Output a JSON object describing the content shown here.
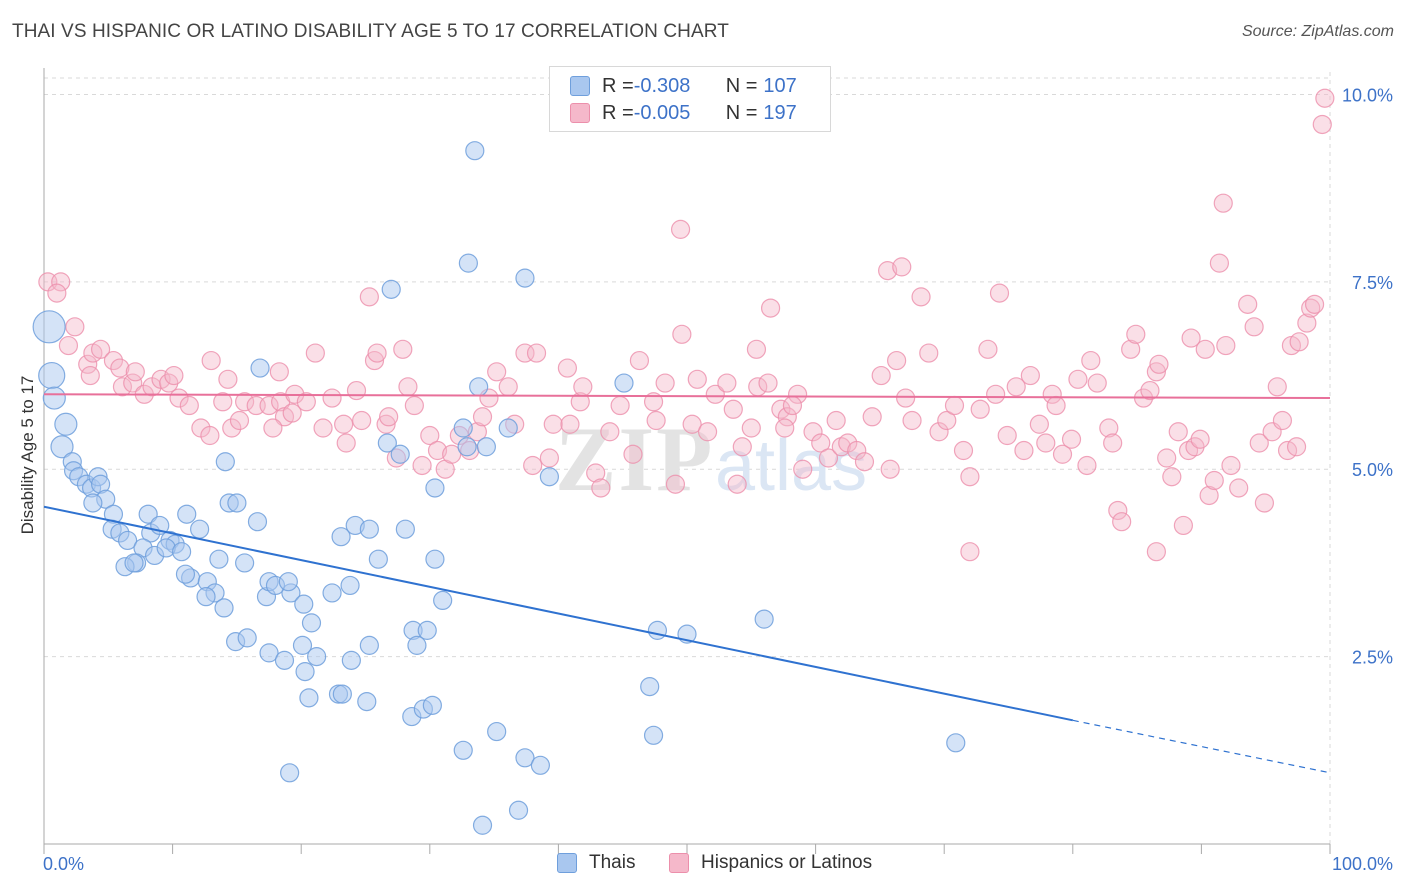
{
  "title": "THAI VS HISPANIC OR LATINO DISABILITY AGE 5 TO 17 CORRELATION CHART",
  "source": "Source: ZipAtlas.com",
  "legend": {
    "rows": [
      {
        "r_label": "R = ",
        "r_value": "-0.308",
        "n_label": "N = ",
        "n_value": "107"
      },
      {
        "r_label": "R = ",
        "r_value": "-0.005",
        "n_label": "N = ",
        "n_value": "197"
      }
    ]
  },
  "bottom_legend": [
    "Thais",
    "Hispanics or Latinos"
  ],
  "colors": {
    "thais_fill": "#a9c7ef",
    "thais_stroke": "#6f9fdc",
    "thais_line": "#2f72d0",
    "hisp_fill": "#f5b8ca",
    "hisp_stroke": "#ec8fab",
    "hisp_line": "#e8709a",
    "axis_text": "#3d72c8",
    "grid": "#d9d9d9"
  },
  "chart_data": {
    "type": "scatter",
    "title": "THAI VS HISPANIC OR LATINO DISABILITY AGE 5 TO 17 CORRELATION CHART",
    "xlabel": "",
    "ylabel": "Disability Age 5 to 17",
    "xlim": [
      0,
      100
    ],
    "ylim": [
      0,
      10.3
    ],
    "x_tick_labels": [
      "0.0%",
      "100.0%"
    ],
    "y_ticks": [
      2.5,
      5.0,
      7.5,
      10.0
    ],
    "y_tick_labels": [
      "2.5%",
      "5.0%",
      "7.5%",
      "10.0%"
    ],
    "grid": true,
    "legend_position": "top-center",
    "series": [
      {
        "name": "Thais",
        "trend": {
          "x": [
            0,
            80
          ],
          "y": [
            4.5,
            1.65
          ],
          "dashed_to": [
            100,
            0.95
          ]
        },
        "points": [
          [
            0.4,
            6.9
          ],
          [
            0.6,
            6.25
          ],
          [
            0.8,
            5.95
          ],
          [
            1.7,
            5.6
          ],
          [
            1.4,
            5.3
          ],
          [
            2.2,
            5.1
          ],
          [
            2.3,
            4.98
          ],
          [
            2.7,
            4.9
          ],
          [
            3.3,
            4.8
          ],
          [
            3.7,
            4.75
          ],
          [
            4.2,
            4.9
          ],
          [
            4.4,
            4.8
          ],
          [
            4.8,
            4.6
          ],
          [
            3.8,
            4.55
          ],
          [
            5.4,
            4.4
          ],
          [
            5.3,
            4.2
          ],
          [
            5.9,
            4.15
          ],
          [
            6.5,
            4.05
          ],
          [
            8.1,
            4.4
          ],
          [
            8.3,
            4.15
          ],
          [
            9.0,
            4.25
          ],
          [
            9.8,
            4.05
          ],
          [
            10.2,
            4.0
          ],
          [
            11.1,
            4.4
          ],
          [
            12.1,
            4.2
          ],
          [
            14.4,
            4.55
          ],
          [
            16.6,
            4.3
          ],
          [
            7.7,
            3.95
          ],
          [
            7.2,
            3.75
          ],
          [
            6.3,
            3.7
          ],
          [
            7.0,
            3.75
          ],
          [
            8.6,
            3.85
          ],
          [
            9.5,
            3.95
          ],
          [
            10.7,
            3.9
          ],
          [
            11.4,
            3.55
          ],
          [
            11.0,
            3.6
          ],
          [
            13.6,
            3.8
          ],
          [
            15.6,
            3.75
          ],
          [
            12.7,
            3.5
          ],
          [
            13.3,
            3.35
          ],
          [
            12.6,
            3.3
          ],
          [
            14.0,
            3.15
          ],
          [
            17.3,
            3.3
          ],
          [
            19.2,
            3.35
          ],
          [
            17.5,
            3.5
          ],
          [
            18.0,
            3.45
          ],
          [
            19.0,
            3.5
          ],
          [
            20.2,
            3.2
          ],
          [
            20.8,
            2.95
          ],
          [
            22.4,
            3.35
          ],
          [
            23.8,
            3.45
          ],
          [
            14.9,
            2.7
          ],
          [
            15.8,
            2.75
          ],
          [
            17.5,
            2.55
          ],
          [
            18.7,
            2.45
          ],
          [
            20.1,
            2.65
          ],
          [
            21.2,
            2.5
          ],
          [
            23.9,
            2.45
          ],
          [
            25.3,
            2.65
          ],
          [
            20.3,
            2.3
          ],
          [
            20.6,
            1.95
          ],
          [
            22.9,
            2.0
          ],
          [
            23.2,
            2.0
          ],
          [
            25.1,
            1.9
          ],
          [
            28.6,
            1.7
          ],
          [
            29.5,
            1.8
          ],
          [
            30.2,
            1.85
          ],
          [
            28.7,
            2.85
          ],
          [
            29.8,
            2.85
          ],
          [
            29.0,
            2.65
          ],
          [
            31.0,
            3.25
          ],
          [
            30.4,
            3.8
          ],
          [
            23.1,
            4.1
          ],
          [
            24.2,
            4.25
          ],
          [
            26.0,
            3.8
          ],
          [
            25.3,
            4.2
          ],
          [
            28.1,
            4.2
          ],
          [
            32.6,
            1.25
          ],
          [
            35.2,
            1.5
          ],
          [
            37.4,
            1.15
          ],
          [
            38.6,
            1.05
          ],
          [
            36.9,
            0.45
          ],
          [
            34.1,
            0.25
          ],
          [
            19.1,
            0.95
          ],
          [
            32.9,
            5.3
          ],
          [
            33.0,
            7.75
          ],
          [
            33.5,
            9.25
          ],
          [
            27.0,
            7.4
          ],
          [
            36.1,
            5.55
          ],
          [
            34.4,
            5.3
          ],
          [
            37.4,
            7.55
          ],
          [
            30.4,
            4.75
          ],
          [
            26.7,
            5.35
          ],
          [
            27.7,
            5.2
          ],
          [
            32.6,
            5.55
          ],
          [
            39.3,
            4.9
          ],
          [
            33.8,
            6.1
          ],
          [
            15.0,
            4.55
          ],
          [
            14.1,
            5.1
          ],
          [
            16.8,
            6.35
          ],
          [
            56.0,
            3.0
          ],
          [
            47.7,
            2.85
          ],
          [
            50.0,
            2.8
          ],
          [
            47.1,
            2.1
          ],
          [
            47.4,
            1.45
          ],
          [
            70.9,
            1.35
          ],
          [
            45.1,
            6.15
          ]
        ]
      },
      {
        "name": "Hispanics or Latinos",
        "trend": {
          "x": [
            0,
            100
          ],
          "y": [
            6.0,
            5.95
          ]
        },
        "points": [
          [
            0.3,
            7.5
          ],
          [
            1.3,
            7.5
          ],
          [
            1.0,
            7.35
          ],
          [
            2.4,
            6.9
          ],
          [
            1.9,
            6.65
          ],
          [
            3.4,
            6.4
          ],
          [
            3.8,
            6.55
          ],
          [
            3.6,
            6.25
          ],
          [
            4.4,
            6.6
          ],
          [
            5.4,
            6.45
          ],
          [
            5.9,
            6.35
          ],
          [
            6.1,
            6.1
          ],
          [
            6.9,
            6.15
          ],
          [
            7.1,
            6.3
          ],
          [
            7.8,
            6.0
          ],
          [
            8.4,
            6.1
          ],
          [
            9.1,
            6.2
          ],
          [
            9.7,
            6.15
          ],
          [
            10.1,
            6.25
          ],
          [
            10.5,
            5.95
          ],
          [
            11.3,
            5.85
          ],
          [
            12.2,
            5.55
          ],
          [
            12.9,
            5.45
          ],
          [
            13.9,
            5.9
          ],
          [
            13.0,
            6.45
          ],
          [
            14.6,
            5.55
          ],
          [
            14.3,
            6.2
          ],
          [
            15.2,
            5.65
          ],
          [
            15.6,
            5.9
          ],
          [
            16.5,
            5.85
          ],
          [
            17.5,
            5.85
          ],
          [
            18.4,
            5.9
          ],
          [
            18.7,
            5.7
          ],
          [
            19.3,
            5.75
          ],
          [
            17.8,
            5.55
          ],
          [
            18.3,
            6.3
          ],
          [
            19.5,
            6.0
          ],
          [
            20.4,
            5.9
          ],
          [
            21.1,
            6.55
          ],
          [
            21.7,
            5.55
          ],
          [
            22.4,
            5.95
          ],
          [
            23.3,
            5.6
          ],
          [
            23.5,
            5.35
          ],
          [
            24.3,
            6.05
          ],
          [
            24.7,
            5.65
          ],
          [
            25.7,
            6.45
          ],
          [
            25.9,
            6.55
          ],
          [
            25.3,
            7.3
          ],
          [
            26.6,
            5.6
          ],
          [
            26.8,
            5.7
          ],
          [
            27.4,
            5.15
          ],
          [
            27.9,
            6.6
          ],
          [
            28.3,
            6.1
          ],
          [
            28.8,
            5.85
          ],
          [
            29.4,
            5.05
          ],
          [
            30.0,
            5.45
          ],
          [
            30.6,
            5.25
          ],
          [
            31.2,
            5.0
          ],
          [
            31.7,
            5.2
          ],
          [
            32.3,
            5.45
          ],
          [
            33.1,
            5.25
          ],
          [
            33.7,
            5.5
          ],
          [
            34.1,
            5.7
          ],
          [
            34.6,
            5.95
          ],
          [
            35.2,
            6.3
          ],
          [
            36.1,
            6.1
          ],
          [
            36.6,
            5.6
          ],
          [
            37.4,
            6.55
          ],
          [
            38.3,
            6.55
          ],
          [
            38.0,
            5.05
          ],
          [
            39.3,
            5.15
          ],
          [
            39.6,
            5.6
          ],
          [
            40.7,
            6.35
          ],
          [
            40.9,
            5.6
          ],
          [
            41.7,
            5.9
          ],
          [
            41.9,
            6.1
          ],
          [
            42.9,
            4.95
          ],
          [
            43.3,
            4.75
          ],
          [
            44.0,
            5.5
          ],
          [
            44.8,
            5.85
          ],
          [
            45.8,
            5.2
          ],
          [
            46.3,
            6.45
          ],
          [
            47.4,
            5.9
          ],
          [
            47.6,
            5.65
          ],
          [
            48.3,
            6.15
          ],
          [
            49.1,
            4.8
          ],
          [
            49.6,
            6.8
          ],
          [
            50.4,
            5.6
          ],
          [
            50.8,
            6.2
          ],
          [
            51.6,
            5.5
          ],
          [
            52.2,
            6.0
          ],
          [
            53.1,
            6.15
          ],
          [
            53.6,
            5.8
          ],
          [
            54.3,
            5.3
          ],
          [
            55.0,
            5.55
          ],
          [
            55.5,
            6.1
          ],
          [
            56.3,
            6.15
          ],
          [
            56.5,
            7.15
          ],
          [
            57.3,
            5.8
          ],
          [
            57.8,
            5.7
          ],
          [
            58.6,
            6.0
          ],
          [
            59.0,
            5.0
          ],
          [
            59.8,
            5.5
          ],
          [
            60.4,
            5.35
          ],
          [
            61.0,
            5.15
          ],
          [
            61.6,
            5.65
          ],
          [
            62.0,
            5.3
          ],
          [
            62.5,
            5.35
          ],
          [
            63.2,
            5.25
          ],
          [
            63.8,
            5.1
          ],
          [
            64.4,
            5.7
          ],
          [
            65.1,
            6.25
          ],
          [
            65.8,
            5.0
          ],
          [
            66.3,
            6.45
          ],
          [
            67.0,
            5.95
          ],
          [
            67.5,
            5.65
          ],
          [
            68.2,
            7.3
          ],
          [
            68.8,
            6.55
          ],
          [
            69.6,
            5.5
          ],
          [
            70.2,
            5.65
          ],
          [
            70.8,
            5.85
          ],
          [
            71.5,
            5.25
          ],
          [
            72.0,
            4.9
          ],
          [
            72.8,
            5.8
          ],
          [
            73.4,
            6.6
          ],
          [
            74.0,
            6.0
          ],
          [
            74.3,
            7.35
          ],
          [
            74.9,
            5.45
          ],
          [
            75.6,
            6.1
          ],
          [
            76.2,
            5.25
          ],
          [
            76.7,
            6.25
          ],
          [
            77.4,
            5.6
          ],
          [
            77.9,
            5.35
          ],
          [
            78.4,
            6.0
          ],
          [
            78.7,
            5.85
          ],
          [
            79.2,
            5.2
          ],
          [
            79.9,
            5.4
          ],
          [
            80.4,
            6.2
          ],
          [
            81.1,
            5.05
          ],
          [
            81.4,
            6.45
          ],
          [
            81.9,
            6.15
          ],
          [
            82.8,
            5.55
          ],
          [
            83.1,
            5.35
          ],
          [
            83.5,
            4.45
          ],
          [
            83.8,
            4.3
          ],
          [
            84.5,
            6.6
          ],
          [
            84.9,
            6.8
          ],
          [
            85.5,
            5.95
          ],
          [
            86.0,
            6.05
          ],
          [
            86.5,
            6.3
          ],
          [
            86.7,
            6.4
          ],
          [
            87.3,
            5.15
          ],
          [
            87.7,
            4.9
          ],
          [
            88.2,
            5.5
          ],
          [
            88.6,
            4.25
          ],
          [
            89.0,
            5.25
          ],
          [
            89.5,
            5.3
          ],
          [
            89.9,
            5.4
          ],
          [
            90.3,
            6.6
          ],
          [
            90.6,
            4.65
          ],
          [
            91.0,
            4.85
          ],
          [
            91.4,
            7.75
          ],
          [
            91.7,
            8.55
          ],
          [
            91.9,
            6.65
          ],
          [
            92.3,
            5.05
          ],
          [
            92.9,
            4.75
          ],
          [
            93.6,
            7.2
          ],
          [
            94.1,
            6.9
          ],
          [
            94.5,
            5.35
          ],
          [
            94.9,
            4.55
          ],
          [
            95.5,
            5.5
          ],
          [
            95.9,
            6.1
          ],
          [
            96.3,
            5.65
          ],
          [
            96.7,
            5.25
          ],
          [
            97.0,
            6.65
          ],
          [
            97.6,
            6.7
          ],
          [
            98.2,
            6.95
          ],
          [
            98.5,
            7.15
          ],
          [
            98.8,
            7.2
          ],
          [
            97.4,
            5.3
          ],
          [
            99.4,
            9.6
          ],
          [
            99.6,
            9.95
          ],
          [
            89.2,
            6.75
          ],
          [
            86.5,
            3.9
          ],
          [
            72.0,
            3.9
          ],
          [
            55.4,
            6.6
          ],
          [
            49.5,
            8.2
          ],
          [
            65.6,
            7.65
          ],
          [
            66.7,
            7.7
          ],
          [
            57.6,
            5.55
          ],
          [
            58.2,
            5.85
          ],
          [
            53.9,
            4.8
          ]
        ]
      }
    ]
  }
}
